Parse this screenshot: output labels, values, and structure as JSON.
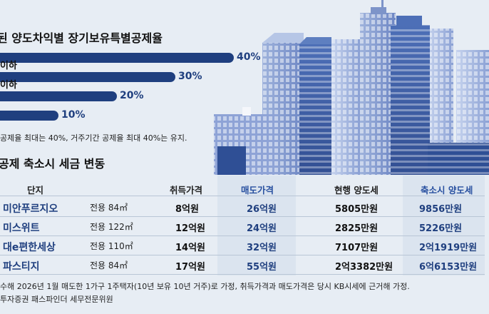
{
  "chart_data": [
    {
      "type": "bar",
      "orientation": "horizontal",
      "title": "된 양도차익별 장기보유특별공제율",
      "categories": [
        "",
        "이하",
        "이하",
        ""
      ],
      "values": [
        40,
        30,
        20,
        10
      ],
      "value_labels": [
        "40%",
        "30%",
        "20%",
        "10%"
      ],
      "xlim": [
        0,
        40
      ],
      "note": "공제율 최대는 40%, 거주기간 공제율 최대 40%는 유지."
    },
    {
      "type": "table",
      "title": "공제 축소시 세금 변동",
      "columns": [
        "단지",
        "",
        "취득가격",
        "매도가격",
        "현행 양도세",
        "축소시 양도세"
      ],
      "rows": [
        [
          "미안푸르지오",
          "전용 84㎡",
          "8억원",
          "26억원",
          "5805만원",
          "9856만원"
        ],
        [
          "미스위트",
          "전용 122㎡",
          "12억원",
          "24억원",
          "2825만원",
          "5226만원"
        ],
        [
          "대e편한세상",
          "전용 110㎡",
          "14억원",
          "32억원",
          "7107만원",
          "2억1919만원"
        ],
        [
          "파스티지",
          "전용 84㎡",
          "17억원",
          "55억원",
          "2억3382만원",
          "6억6153만원"
        ]
      ]
    }
  ],
  "footnote1": "수해 2026년 1월 매도한 1가구 1주택자(10년 보유 10년 거주)로 가정, 취득가격과 매도가격은 당시 KB시세에 근거해 가정.",
  "footnote2": "투자증권 패스파인더 세무전문위원",
  "colors": {
    "bar": "#1f3f7f",
    "accent_blue": "#2850a0",
    "background": "#e7edf4"
  }
}
